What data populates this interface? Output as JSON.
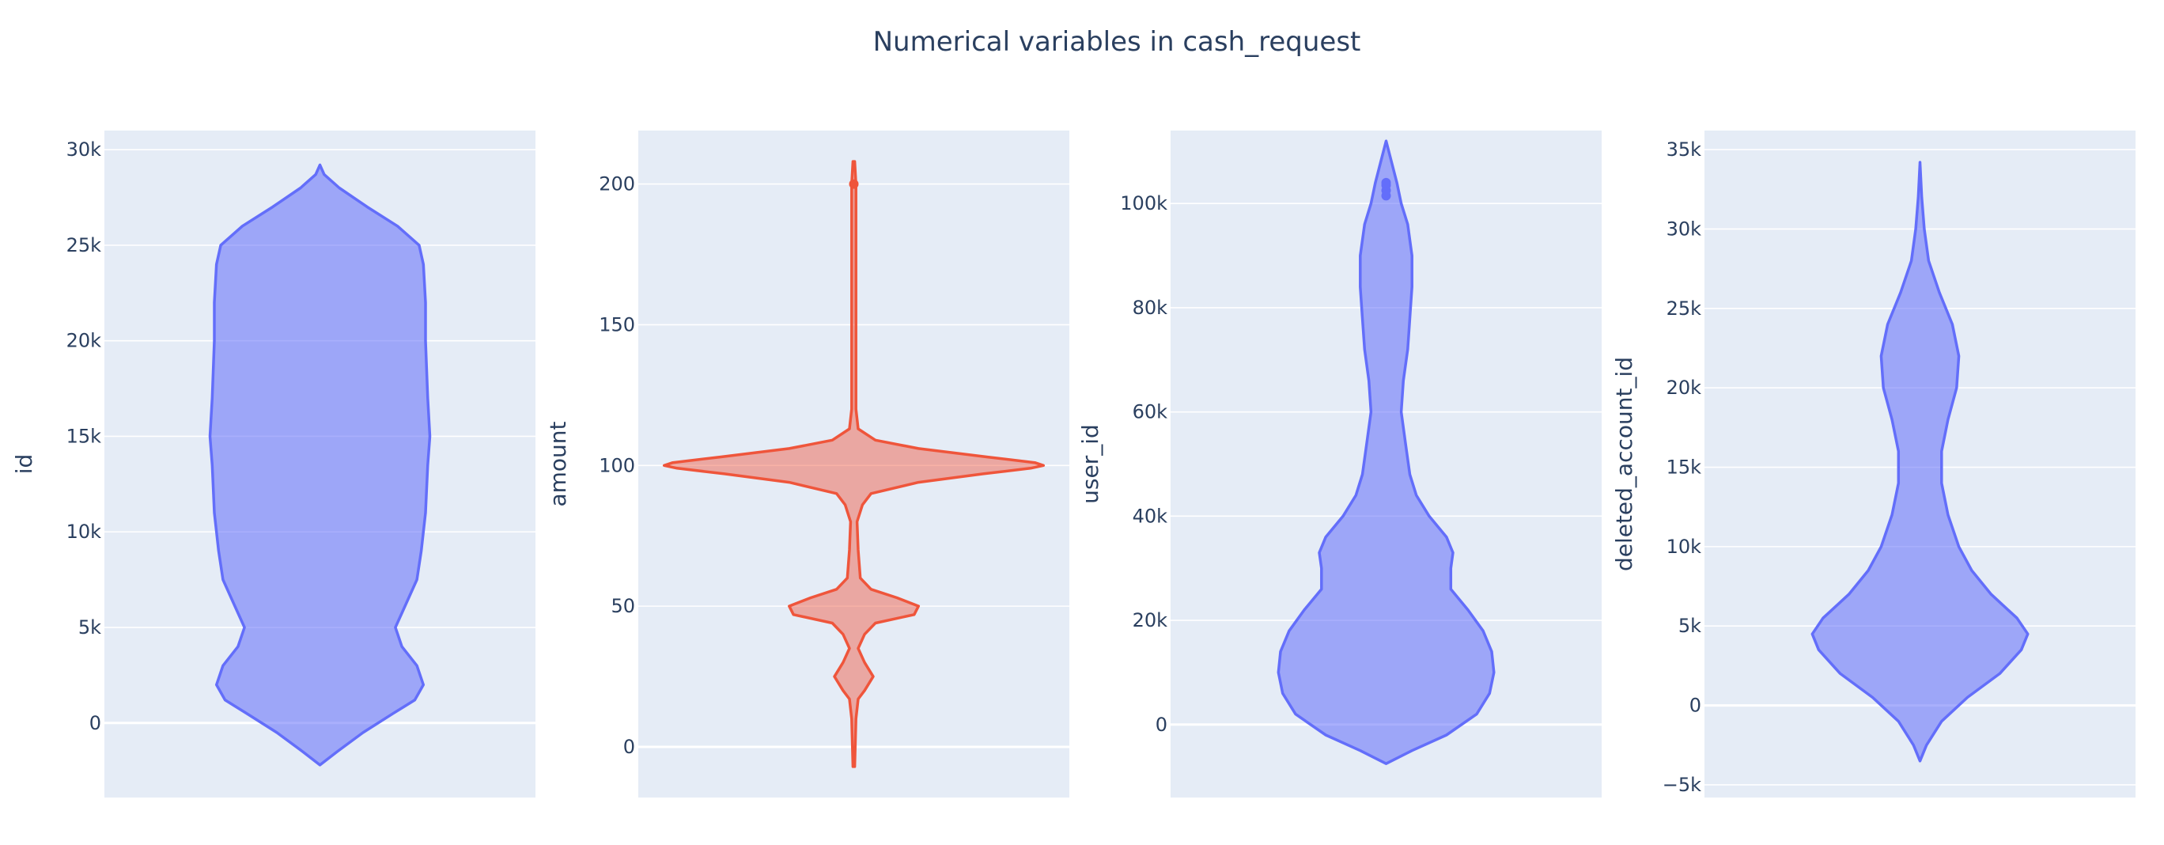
{
  "chart_data": {
    "type": "violin",
    "title": "Numerical variables in cash_request",
    "colors": {
      "background": "#ffffff",
      "plot_bg": "#e5ecf6",
      "grid": "#ffffff",
      "text": "#2a3f5f"
    },
    "grid": true,
    "legend": false,
    "subplots": [
      {
        "ylabel": "id",
        "color": "#636efa",
        "fill": "rgba(99,110,250,0.55)",
        "ylim": [
          -3900,
          31000
        ],
        "ticks": [
          0,
          5000,
          10000,
          15000,
          20000,
          25000,
          30000
        ],
        "tick_labels": [
          "0",
          "5k",
          "10k",
          "15k",
          "20k",
          "25k",
          "30k"
        ],
        "range": [
          -2200,
          29200
        ],
        "profile": [
          [
            -2200,
            0
          ],
          [
            -1500,
            0.08
          ],
          [
            -500,
            0.2
          ],
          [
            500,
            0.34
          ],
          [
            1200,
            0.44
          ],
          [
            2000,
            0.48
          ],
          [
            3000,
            0.45
          ],
          [
            4000,
            0.38
          ],
          [
            5000,
            0.35
          ],
          [
            6000,
            0.39
          ],
          [
            7500,
            0.45
          ],
          [
            9000,
            0.47
          ],
          [
            11000,
            0.49
          ],
          [
            13500,
            0.5
          ],
          [
            15000,
            0.51
          ],
          [
            17000,
            0.5
          ],
          [
            20000,
            0.49
          ],
          [
            22000,
            0.49
          ],
          [
            24000,
            0.48
          ],
          [
            25000,
            0.46
          ],
          [
            26000,
            0.36
          ],
          [
            27000,
            0.22
          ],
          [
            28000,
            0.09
          ],
          [
            28700,
            0.02
          ],
          [
            29200,
            0
          ]
        ],
        "outliers": []
      },
      {
        "ylabel": "amount",
        "color": "#ef553b",
        "fill": "rgba(239,85,59,0.45)",
        "ylim": [
          -18,
          219
        ],
        "ticks": [
          0,
          50,
          100,
          150,
          200
        ],
        "tick_labels": [
          "0",
          "50",
          "100",
          "150",
          "200"
        ],
        "range": [
          -7,
          208
        ],
        "profile": [
          [
            -7,
            0.004
          ],
          [
            10,
            0.01
          ],
          [
            17,
            0.02
          ],
          [
            20,
            0.05
          ],
          [
            25,
            0.09
          ],
          [
            30,
            0.05
          ],
          [
            35,
            0.02
          ],
          [
            40,
            0.05
          ],
          [
            44,
            0.1
          ],
          [
            47,
            0.28
          ],
          [
            50,
            0.3
          ],
          [
            53,
            0.2
          ],
          [
            56,
            0.08
          ],
          [
            60,
            0.03
          ],
          [
            70,
            0.02
          ],
          [
            80,
            0.015
          ],
          [
            86,
            0.04
          ],
          [
            90,
            0.08
          ],
          [
            94,
            0.3
          ],
          [
            97,
            0.6
          ],
          [
            99,
            0.82
          ],
          [
            100,
            0.88
          ],
          [
            101,
            0.84
          ],
          [
            103,
            0.62
          ],
          [
            106,
            0.3
          ],
          [
            109,
            0.1
          ],
          [
            113,
            0.02
          ],
          [
            120,
            0.01
          ],
          [
            150,
            0.01
          ],
          [
            190,
            0.01
          ],
          [
            200,
            0.01
          ],
          [
            208,
            0.004
          ]
        ],
        "outliers": [
          200
        ]
      },
      {
        "ylabel": "user_id",
        "color": "#636efa",
        "fill": "rgba(99,110,250,0.55)",
        "ylim": [
          -14000,
          114000
        ],
        "ticks": [
          0,
          20000,
          40000,
          60000,
          80000,
          100000
        ],
        "tick_labels": [
          "0",
          "20k",
          "40k",
          "60k",
          "80k",
          "100k"
        ],
        "range": [
          -7500,
          112000
        ],
        "profile": [
          [
            -7500,
            0
          ],
          [
            -5000,
            0.12
          ],
          [
            -2000,
            0.28
          ],
          [
            2000,
            0.42
          ],
          [
            6000,
            0.48
          ],
          [
            10000,
            0.5
          ],
          [
            14000,
            0.49
          ],
          [
            18000,
            0.45
          ],
          [
            22000,
            0.38
          ],
          [
            26000,
            0.3
          ],
          [
            30000,
            0.3
          ],
          [
            33000,
            0.31
          ],
          [
            36000,
            0.28
          ],
          [
            40000,
            0.2
          ],
          [
            44000,
            0.14
          ],
          [
            48000,
            0.11
          ],
          [
            54000,
            0.09
          ],
          [
            60000,
            0.07
          ],
          [
            66000,
            0.08
          ],
          [
            72000,
            0.1
          ],
          [
            78000,
            0.11
          ],
          [
            84000,
            0.12
          ],
          [
            90000,
            0.12
          ],
          [
            96000,
            0.1
          ],
          [
            100000,
            0.07
          ],
          [
            104000,
            0.05
          ],
          [
            108000,
            0.025
          ],
          [
            112000,
            0
          ]
        ],
        "outliers": [
          101500,
          102500,
          103500,
          104000
        ]
      },
      {
        "ylabel": "deleted_account_id",
        "color": "#636efa",
        "fill": "rgba(99,110,250,0.55)",
        "ylim": [
          -5800,
          36200
        ],
        "ticks": [
          -5000,
          0,
          5000,
          10000,
          15000,
          20000,
          25000,
          30000,
          35000
        ],
        "tick_labels": [
          "−5k",
          "0",
          "5k",
          "10k",
          "15k",
          "20k",
          "25k",
          "30k",
          "35k"
        ],
        "range": [
          -3500,
          34200
        ],
        "profile": [
          [
            -3500,
            0
          ],
          [
            -2500,
            0.03
          ],
          [
            -1000,
            0.1
          ],
          [
            500,
            0.22
          ],
          [
            2000,
            0.37
          ],
          [
            3500,
            0.47
          ],
          [
            4500,
            0.5
          ],
          [
            5500,
            0.45
          ],
          [
            7000,
            0.33
          ],
          [
            8500,
            0.24
          ],
          [
            10000,
            0.18
          ],
          [
            12000,
            0.13
          ],
          [
            14000,
            0.1
          ],
          [
            16000,
            0.1
          ],
          [
            18000,
            0.13
          ],
          [
            20000,
            0.17
          ],
          [
            22000,
            0.18
          ],
          [
            24000,
            0.15
          ],
          [
            26000,
            0.09
          ],
          [
            28000,
            0.04
          ],
          [
            30000,
            0.02
          ],
          [
            32000,
            0.008
          ],
          [
            34200,
            0
          ]
        ],
        "outliers": []
      }
    ]
  }
}
